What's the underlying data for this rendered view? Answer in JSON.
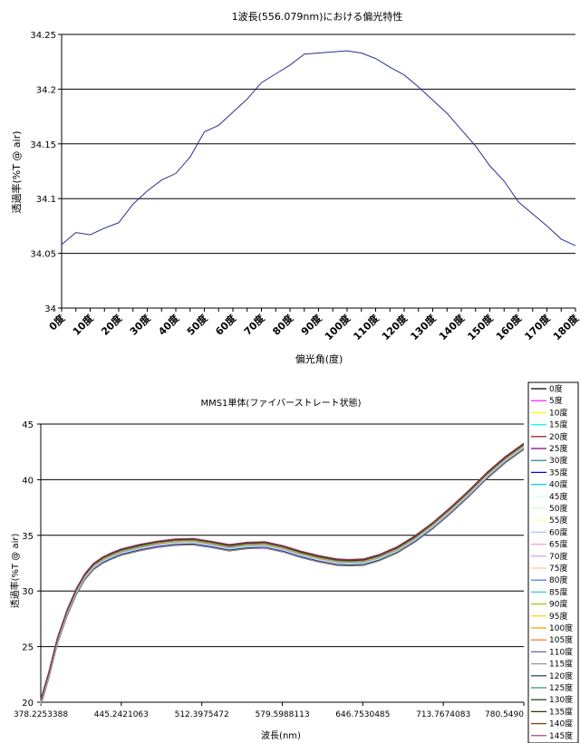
{
  "chart_data": [
    {
      "type": "line",
      "title": "1波長(556.079nm)における偏光特性",
      "xlabel": "偏光角(度)",
      "ylabel": "透過率(%T @ air)",
      "ylim": [
        34,
        34.25
      ],
      "yticks": [
        "34",
        "34.05",
        "34.1",
        "34.15",
        "34.2",
        "34.25"
      ],
      "grid": true,
      "legend": "none",
      "color": "#2b2f8f",
      "categories": [
        "0度",
        "10度",
        "20度",
        "30度",
        "40度",
        "50度",
        "60度",
        "70度",
        "80度",
        "90度",
        "100度",
        "110度",
        "120度",
        "130度",
        "140度",
        "150度",
        "160度",
        "170度",
        "180度"
      ],
      "x": [
        0,
        5,
        10,
        15,
        20,
        25,
        30,
        35,
        40,
        45,
        50,
        55,
        60,
        65,
        70,
        75,
        80,
        85,
        90,
        95,
        100,
        105,
        110,
        115,
        120,
        125,
        130,
        135,
        140,
        145,
        150,
        155,
        160,
        165,
        170,
        175,
        180
      ],
      "values": [
        34.058,
        34.069,
        34.067,
        34.073,
        34.078,
        34.095,
        34.107,
        34.117,
        34.123,
        34.138,
        34.161,
        34.167,
        34.179,
        34.191,
        34.206,
        34.214,
        34.222,
        34.232,
        34.233,
        34.234,
        34.235,
        34.233,
        34.228,
        34.22,
        34.213,
        34.202,
        34.19,
        34.178,
        34.163,
        34.148,
        34.13,
        34.116,
        34.097,
        34.086,
        34.075,
        34.063,
        34.057
      ]
    },
    {
      "type": "line",
      "title": "MMS1単体(ファイバーストレート状態)",
      "xlabel": "波長(nm)",
      "ylabel": "透過率(%T @ air)",
      "ylim": [
        20,
        45
      ],
      "yticks": [
        "20",
        "25",
        "30",
        "35",
        "40",
        "45"
      ],
      "xlim": [
        378.2253388,
        780.549
      ],
      "xticks": [
        "378.2253388",
        "445.2421063",
        "512.3975472",
        "579.5988113",
        "646.7530485",
        "713.7674083",
        "780.5490"
      ],
      "grid": true,
      "legend": "right",
      "x": [
        378.2,
        385,
        392,
        400,
        408,
        415,
        422,
        430,
        438,
        445,
        460,
        475,
        490,
        505,
        520,
        535,
        550,
        565,
        580,
        595,
        610,
        625,
        635,
        647,
        660,
        675,
        690,
        705,
        720,
        735,
        750,
        765,
        780.5
      ],
      "values": [
        20,
        22.5,
        25.5,
        28,
        30,
        31.3,
        32.2,
        32.8,
        33.2,
        33.5,
        33.9,
        34.2,
        34.4,
        34.45,
        34.2,
        33.9,
        34.1,
        34.15,
        33.8,
        33.3,
        32.9,
        32.6,
        32.55,
        32.6,
        33.0,
        33.7,
        34.7,
        35.9,
        37.3,
        38.8,
        40.4,
        41.8,
        43.0
      ],
      "series": [
        {
          "name": "0度",
          "color": "#000000"
        },
        {
          "name": "5度",
          "color": "#ff00ff"
        },
        {
          "name": "10度",
          "color": "#ffff00"
        },
        {
          "name": "15度",
          "color": "#00ffff"
        },
        {
          "name": "20度",
          "color": "#800000"
        },
        {
          "name": "25度",
          "color": "#800080"
        },
        {
          "name": "30度",
          "color": "#008080"
        },
        {
          "name": "35度",
          "color": "#0000ff"
        },
        {
          "name": "40度",
          "color": "#00ccff"
        },
        {
          "name": "45度",
          "color": "#ccffff"
        },
        {
          "name": "50度",
          "color": "#ccffcc"
        },
        {
          "name": "55度",
          "color": "#ffff99"
        },
        {
          "name": "60度",
          "color": "#99ccff"
        },
        {
          "name": "65度",
          "color": "#ff99cc"
        },
        {
          "name": "70度",
          "color": "#cc99ff"
        },
        {
          "name": "75度",
          "color": "#ffcc99"
        },
        {
          "name": "80度",
          "color": "#3366ff"
        },
        {
          "name": "85度",
          "color": "#33cccc"
        },
        {
          "name": "90度",
          "color": "#99cc00"
        },
        {
          "name": "95度",
          "color": "#ffcc00"
        },
        {
          "name": "100度",
          "color": "#ff9900"
        },
        {
          "name": "105度",
          "color": "#ff6600"
        },
        {
          "name": "110度",
          "color": "#666699"
        },
        {
          "name": "115度",
          "color": "#969696"
        },
        {
          "name": "120度",
          "color": "#003366"
        },
        {
          "name": "125度",
          "color": "#339966"
        },
        {
          "name": "130度",
          "color": "#003300"
        },
        {
          "name": "135度",
          "color": "#333300"
        },
        {
          "name": "140度",
          "color": "#993300"
        },
        {
          "name": "145度",
          "color": "#993366"
        }
      ]
    }
  ]
}
